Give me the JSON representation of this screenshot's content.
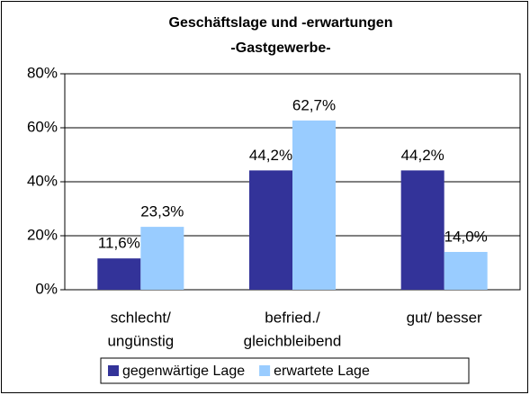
{
  "chart_data": {
    "type": "bar",
    "title": "Geschäftslage und -erwartungen",
    "subtitle": "-Gastgewerbe-",
    "categories": [
      [
        "schlecht/",
        "ungünstig"
      ],
      [
        "befried./",
        "gleichbleibend"
      ],
      [
        "gut/ besser"
      ]
    ],
    "series": [
      {
        "name": "gegenwärtige Lage",
        "color": "#333399",
        "values": [
          11.6,
          44.2,
          44.2
        ],
        "value_labels": [
          "11,6%",
          "44,2%",
          "44,2%"
        ]
      },
      {
        "name": "erwartete Lage",
        "color": "#99ccff",
        "values": [
          23.3,
          62.7,
          14.0
        ],
        "value_labels": [
          "23,3%",
          "62,7%",
          "14,0%"
        ]
      }
    ],
    "ylim": [
      0,
      80
    ],
    "yticks": [
      {
        "value": 0,
        "label": "0%"
      },
      {
        "value": 20,
        "label": "20%"
      },
      {
        "value": 40,
        "label": "40%"
      },
      {
        "value": 60,
        "label": "60%"
      },
      {
        "value": 80,
        "label": "80%"
      }
    ],
    "grid": true,
    "legend": "bottom"
  }
}
